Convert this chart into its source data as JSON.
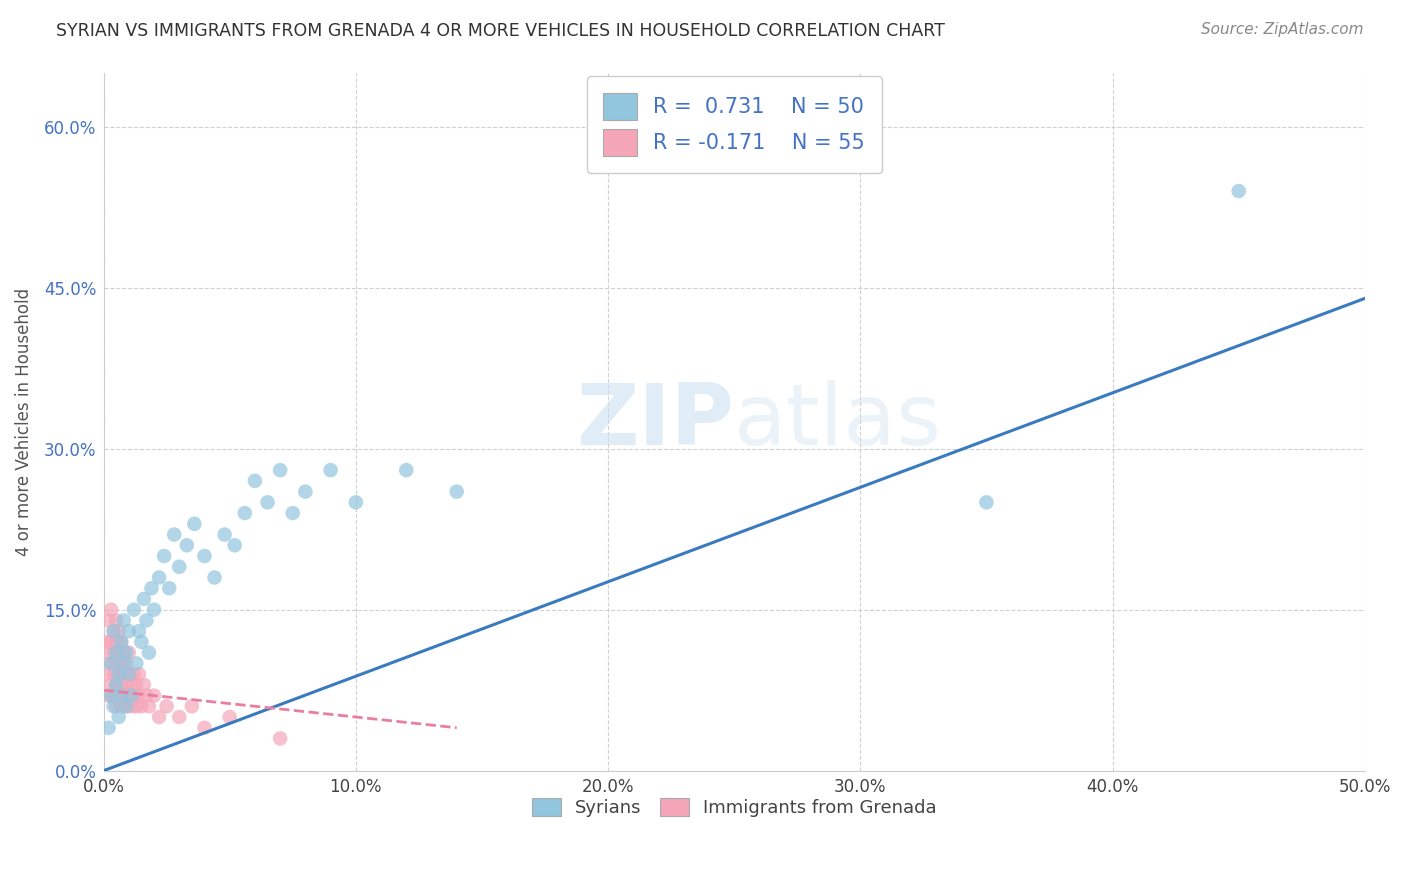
{
  "title": "SYRIAN VS IMMIGRANTS FROM GRENADA 4 OR MORE VEHICLES IN HOUSEHOLD CORRELATION CHART",
  "source": "Source: ZipAtlas.com",
  "ylabel": "4 or more Vehicles in Household",
  "xlim": [
    0.0,
    0.5
  ],
  "ylim": [
    0.0,
    0.65
  ],
  "xtick_labels": [
    "0.0%",
    "10.0%",
    "20.0%",
    "30.0%",
    "40.0%",
    "50.0%"
  ],
  "xtick_vals": [
    0.0,
    0.1,
    0.2,
    0.3,
    0.4,
    0.5
  ],
  "ytick_labels": [
    "0.0%",
    "15.0%",
    "30.0%",
    "45.0%",
    "60.0%"
  ],
  "ytick_vals": [
    0.0,
    0.15,
    0.3,
    0.45,
    0.6
  ],
  "watermark_zip": "ZIP",
  "watermark_atlas": "atlas",
  "syrians_R": 0.731,
  "syrians_N": 50,
  "grenada_R": -0.171,
  "grenada_N": 55,
  "syrians_color": "#92c5de",
  "grenada_color": "#f4a6b8",
  "syrians_line_color": "#3a7bbf",
  "grenada_line_color": "#e87fa0",
  "legend_syrians": "Syrians",
  "legend_grenada": "Immigrants from Grenada",
  "syrians_line_x": [
    0.0,
    0.5
  ],
  "syrians_line_y": [
    0.0,
    0.44
  ],
  "grenada_line_x": [
    0.0,
    0.14
  ],
  "grenada_line_y": [
    0.075,
    0.04
  ],
  "syrians_scatter_x": [
    0.002,
    0.003,
    0.003,
    0.004,
    0.004,
    0.005,
    0.005,
    0.006,
    0.006,
    0.007,
    0.007,
    0.008,
    0.008,
    0.009,
    0.009,
    0.01,
    0.01,
    0.011,
    0.012,
    0.013,
    0.014,
    0.015,
    0.016,
    0.017,
    0.018,
    0.019,
    0.02,
    0.022,
    0.024,
    0.026,
    0.028,
    0.03,
    0.033,
    0.036,
    0.04,
    0.044,
    0.048,
    0.052,
    0.056,
    0.06,
    0.065,
    0.07,
    0.075,
    0.08,
    0.09,
    0.1,
    0.12,
    0.14,
    0.35,
    0.45
  ],
  "syrians_scatter_y": [
    0.04,
    0.07,
    0.1,
    0.06,
    0.13,
    0.08,
    0.11,
    0.05,
    0.09,
    0.12,
    0.07,
    0.1,
    0.14,
    0.06,
    0.11,
    0.09,
    0.13,
    0.07,
    0.15,
    0.1,
    0.13,
    0.12,
    0.16,
    0.14,
    0.11,
    0.17,
    0.15,
    0.18,
    0.2,
    0.17,
    0.22,
    0.19,
    0.21,
    0.23,
    0.2,
    0.18,
    0.22,
    0.21,
    0.24,
    0.27,
    0.25,
    0.28,
    0.24,
    0.26,
    0.28,
    0.25,
    0.28,
    0.26,
    0.25,
    0.54
  ],
  "grenada_scatter_x": [
    0.001,
    0.001,
    0.002,
    0.002,
    0.002,
    0.003,
    0.003,
    0.003,
    0.003,
    0.004,
    0.004,
    0.004,
    0.004,
    0.005,
    0.005,
    0.005,
    0.005,
    0.005,
    0.006,
    0.006,
    0.006,
    0.006,
    0.007,
    0.007,
    0.007,
    0.007,
    0.008,
    0.008,
    0.008,
    0.009,
    0.009,
    0.009,
    0.01,
    0.01,
    0.01,
    0.011,
    0.011,
    0.012,
    0.012,
    0.013,
    0.013,
    0.014,
    0.014,
    0.015,
    0.016,
    0.017,
    0.018,
    0.02,
    0.022,
    0.025,
    0.03,
    0.035,
    0.04,
    0.05,
    0.07
  ],
  "grenada_scatter_y": [
    0.09,
    0.12,
    0.07,
    0.11,
    0.14,
    0.08,
    0.12,
    0.1,
    0.15,
    0.07,
    0.11,
    0.13,
    0.09,
    0.06,
    0.1,
    0.12,
    0.08,
    0.14,
    0.07,
    0.11,
    0.09,
    0.13,
    0.08,
    0.1,
    0.06,
    0.12,
    0.09,
    0.07,
    0.11,
    0.08,
    0.1,
    0.06,
    0.09,
    0.07,
    0.11,
    0.08,
    0.06,
    0.09,
    0.07,
    0.08,
    0.06,
    0.09,
    0.07,
    0.06,
    0.08,
    0.07,
    0.06,
    0.07,
    0.05,
    0.06,
    0.05,
    0.06,
    0.04,
    0.05,
    0.03
  ]
}
